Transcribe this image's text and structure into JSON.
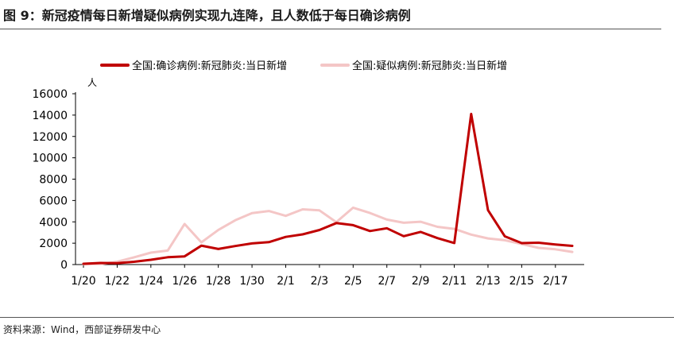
{
  "header": {
    "title": "图 9：新冠疫情每日新增疑似病例实现九连降，且人数低于每日确诊病例"
  },
  "footer": {
    "source": "资料来源：Wind，西部证券研发中心"
  },
  "colors": {
    "confirmed": "#c00000",
    "suspected": "#f4c6c6"
  },
  "chart_data": {
    "type": "line",
    "ylabel": "人",
    "ylim": [
      0,
      16000
    ],
    "yticks": [
      0,
      2000,
      4000,
      6000,
      8000,
      10000,
      12000,
      14000,
      16000
    ],
    "xtick_labels": [
      "1/20",
      "1/22",
      "1/24",
      "1/26",
      "1/28",
      "1/30",
      "2/1",
      "2/3",
      "2/5",
      "2/7",
      "2/9",
      "2/11",
      "2/13",
      "2/15",
      "2/17"
    ],
    "x": [
      "1/20",
      "1/21",
      "1/22",
      "1/23",
      "1/24",
      "1/25",
      "1/26",
      "1/27",
      "1/28",
      "1/29",
      "1/30",
      "1/31",
      "2/1",
      "2/2",
      "2/3",
      "2/4",
      "2/5",
      "2/6",
      "2/7",
      "2/8",
      "2/9",
      "2/10",
      "2/11",
      "2/12",
      "2/13",
      "2/14",
      "2/15",
      "2/16",
      "2/17",
      "2/18"
    ],
    "legend_position": "top",
    "series": [
      {
        "name": "全国:确诊病例:新冠肺炎:当日新增",
        "color": "#c00000",
        "values": [
          77,
          149,
          131,
          259,
          444,
          688,
          769,
          1771,
          1459,
          1737,
          1982,
          2102,
          2590,
          2829,
          3235,
          3887,
          3694,
          3143,
          3399,
          2656,
          3062,
          2478,
          2015,
          14108,
          5090,
          2641,
          2009,
          2048,
          1886,
          1749
        ]
      },
      {
        "name": "全国:疑似病例:新冠肺炎:当日新增",
        "color": "#f4c6c6",
        "values": [
          27,
          53,
          257,
          680,
          1118,
          1309,
          3806,
          2077,
          3248,
          4148,
          4812,
          5019,
          4562,
          5173,
          5072,
          3971,
          5328,
          4833,
          4214,
          3916,
          4008,
          3536,
          3342,
          2807,
          2450,
          2277,
          1918,
          1563,
          1432,
          1185
        ]
      }
    ]
  }
}
